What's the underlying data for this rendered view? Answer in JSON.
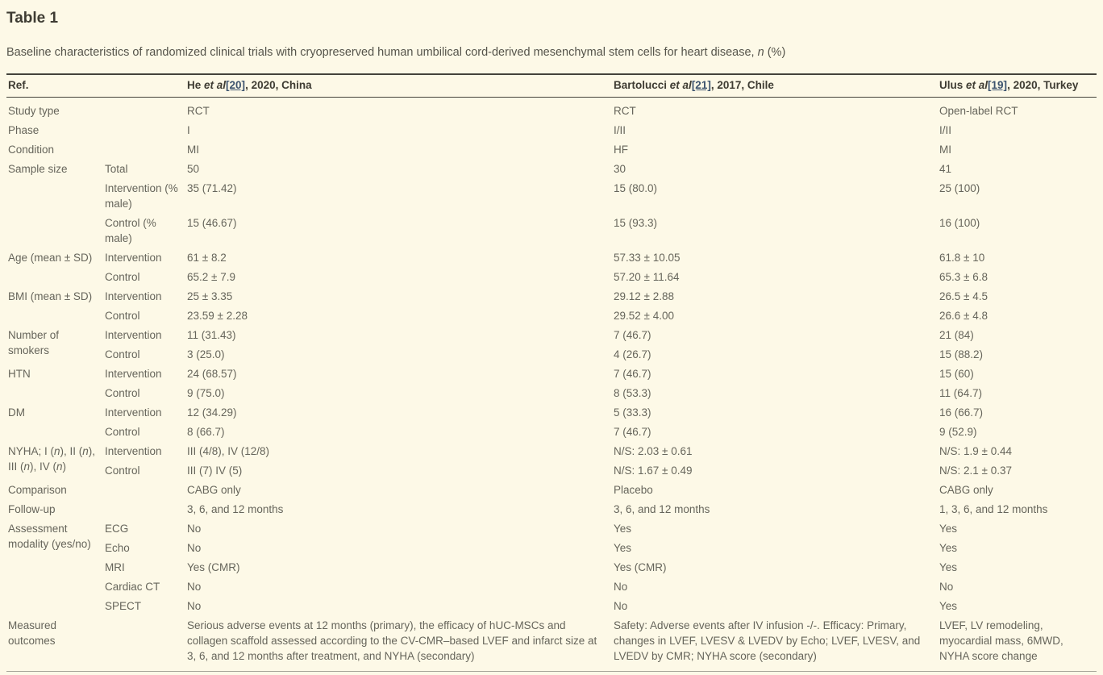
{
  "title": "Table 1",
  "caption": {
    "text": "Baseline characteristics of randomized clinical trials with cryopreserved human umbilical cord-derived mesenchymal stem cells for heart disease, ",
    "italic": "n",
    "suffix": " (%)"
  },
  "colors": {
    "background": "#fdf9e7",
    "heading_text": "#3e3c33",
    "body_text": "#66655b",
    "link": "#3c536e",
    "rule_dark": "#44433b",
    "rule_light": "#a6a598"
  },
  "table": {
    "ref_header": "Ref.",
    "study_headers": [
      {
        "pre": "He ",
        "etal": "et al",
        "ref": "[20]",
        "post": ", 2020, China"
      },
      {
        "pre": "Bartolucci ",
        "etal": "et al",
        "ref": "[21]",
        "post": ", 2017, Chile"
      },
      {
        "pre": "Ulus ",
        "etal": "et al",
        "ref": "[19]",
        "post": ", 2020, Turkey"
      }
    ],
    "groups": [
      {
        "label": "Study type",
        "rows": [
          {
            "sub": "",
            "cols": [
              "RCT",
              "RCT",
              "Open-label RCT"
            ]
          }
        ]
      },
      {
        "label": "Phase",
        "rows": [
          {
            "sub": "",
            "cols": [
              "I",
              "I/II",
              "I/II"
            ]
          }
        ]
      },
      {
        "label": "Condition",
        "rows": [
          {
            "sub": "",
            "cols": [
              "MI",
              "HF",
              "MI"
            ]
          }
        ]
      },
      {
        "label": "Sample size",
        "rows": [
          {
            "sub": "Total",
            "cols": [
              "50",
              "30",
              "41"
            ]
          },
          {
            "sub": "Intervention (% male)",
            "cols": [
              "35 (71.42)",
              "15 (80.0)",
              "25 (100)"
            ]
          },
          {
            "sub": "Control (% male)",
            "cols": [
              "15 (46.67)",
              "15 (93.3)",
              "16 (100)"
            ]
          }
        ]
      },
      {
        "label": "Age (mean ± SD)",
        "rows": [
          {
            "sub": "Intervention",
            "cols": [
              "61 ± 8.2",
              "57.33 ± 10.05",
              "61.8 ± 10"
            ]
          },
          {
            "sub": "Control",
            "cols": [
              "65.2 ± 7.9",
              "57.20 ± 11.64",
              "65.3 ± 6.8"
            ]
          }
        ]
      },
      {
        "label": "BMI (mean ± SD)",
        "rows": [
          {
            "sub": "Intervention",
            "cols": [
              "25 ± 3.35",
              "29.12 ± 2.88",
              "26.5 ± 4.5"
            ]
          },
          {
            "sub": "Control",
            "cols": [
              "23.59 ± 2.28",
              "29.52 ± 4.00",
              "26.6 ± 4.8"
            ]
          }
        ]
      },
      {
        "label": "Number of smokers",
        "rows": [
          {
            "sub": "Intervention",
            "cols": [
              "11 (31.43)",
              "7 (46.7)",
              "21 (84)"
            ]
          },
          {
            "sub": "Control",
            "cols": [
              "3 (25.0)",
              "4 (26.7)",
              "15 (88.2)"
            ]
          }
        ]
      },
      {
        "label": "HTN",
        "rows": [
          {
            "sub": "Intervention",
            "cols": [
              "24 (68.57)",
              "7 (46.7)",
              "15 (60)"
            ]
          },
          {
            "sub": "Control",
            "cols": [
              "9 (75.0)",
              "8 (53.3)",
              "11 (64.7)"
            ]
          }
        ]
      },
      {
        "label": "DM",
        "rows": [
          {
            "sub": "Intervention",
            "cols": [
              "12 (34.29)",
              "5 (33.3)",
              "16 (66.7)"
            ]
          },
          {
            "sub": "Control",
            "cols": [
              "8 (66.7)",
              "7 (46.7)",
              "9 (52.9)"
            ]
          }
        ]
      },
      {
        "label": "NYHA; I (n), II (n), III (n), IV (n)",
        "rows": [
          {
            "sub": "Intervention",
            "cols": [
              "III (4/8), IV (12/8)",
              "N/S: 2.03 ± 0.61",
              "N/S: 1.9 ± 0.44"
            ]
          },
          {
            "sub": "Control",
            "cols": [
              "III (7) IV (5)",
              "N/S: 1.67 ± 0.49",
              "N/S: 2.1 ± 0.37"
            ]
          }
        ]
      },
      {
        "label": "Comparison",
        "rows": [
          {
            "sub": "",
            "cols": [
              "CABG only",
              "Placebo",
              "CABG only"
            ]
          }
        ]
      },
      {
        "label": "Follow-up",
        "rows": [
          {
            "sub": "",
            "cols": [
              "3, 6, and 12 months",
              "3, 6, and 12 months",
              "1, 3, 6, and 12 months"
            ]
          }
        ]
      },
      {
        "label": "Assessment modality (yes/no)",
        "rows": [
          {
            "sub": "ECG",
            "cols": [
              "No",
              "Yes",
              "Yes"
            ]
          },
          {
            "sub": "Echo",
            "cols": [
              "No",
              "Yes",
              "Yes"
            ]
          },
          {
            "sub": "MRI",
            "cols": [
              "Yes (CMR)",
              "Yes (CMR)",
              "Yes"
            ]
          },
          {
            "sub": "Cardiac CT",
            "cols": [
              "No",
              "No",
              "No"
            ]
          },
          {
            "sub": "SPECT",
            "cols": [
              "No",
              "No",
              "Yes"
            ]
          }
        ]
      },
      {
        "label": "Measured outcomes",
        "rows": [
          {
            "sub": "",
            "cols": [
              "Serious adverse events at 12 months (primary), the efficacy of hUC-MSCs and collagen scaffold assessed according to the CV-CMR–based LVEF and infarct size at 3, 6, and 12 months after treatment, and NYHA (secondary)",
              "Safety: Adverse events after IV infusion -/-. Efficacy: Primary, changes in LVEF, LVESV & LVEDV by Echo; LVEF, LVESV, and LVEDV by CMR; NYHA score (secondary)",
              "LVEF, LV remodeling, myocardial mass, 6MWD, NYHA score change"
            ]
          }
        ]
      }
    ]
  }
}
